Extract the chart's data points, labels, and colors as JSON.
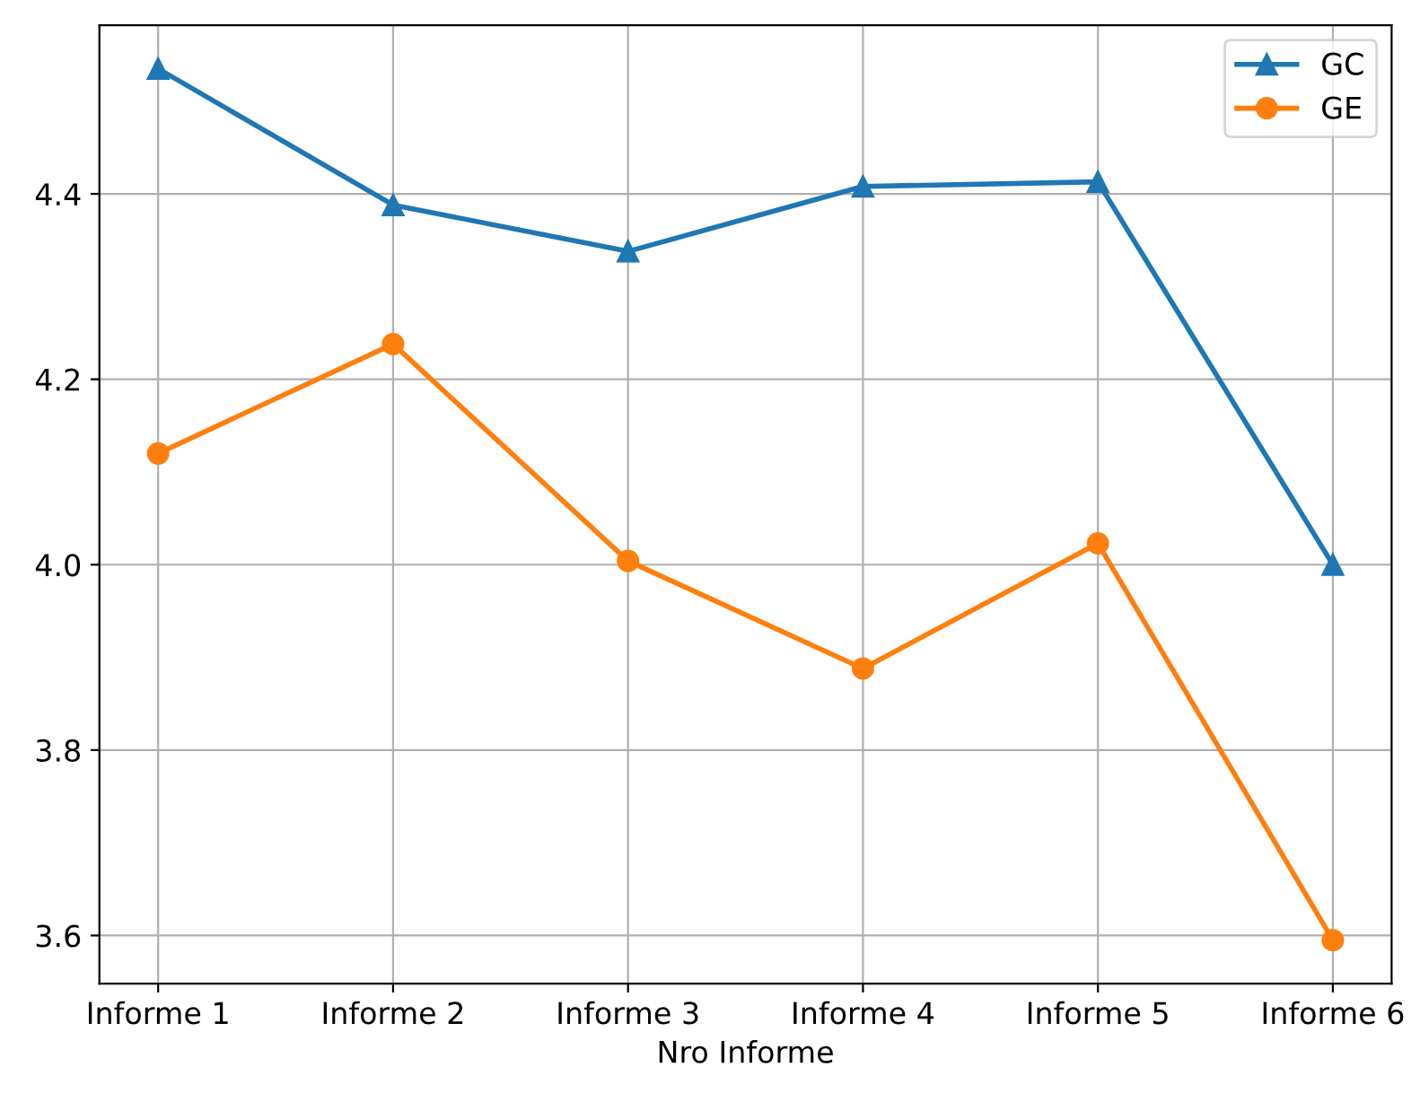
{
  "chart_data": {
    "type": "line",
    "xlabel": "Nro Informe",
    "categories": [
      "Informe 1",
      "Informe 2",
      "Informe 3",
      "Informe 4",
      "Informe 5",
      "Informe 6"
    ],
    "series": [
      {
        "name": "GC",
        "color": "#1f77b4",
        "marker": "triangle",
        "values": [
          4.535,
          4.388,
          4.338,
          4.408,
          4.413,
          4.0
        ]
      },
      {
        "name": "GE",
        "color": "#ff7f0e",
        "marker": "circle",
        "values": [
          4.12,
          4.238,
          4.004,
          3.888,
          4.023,
          3.595
        ]
      }
    ],
    "ylim": [
      3.548,
      4.582
    ],
    "yticks": [
      3.6,
      3.8,
      {
        "value": 4.0,
        "label": "4.0"
      },
      4.2,
      4.4
    ],
    "grid": true,
    "legend": "top right",
    "line_style": "solid"
  }
}
